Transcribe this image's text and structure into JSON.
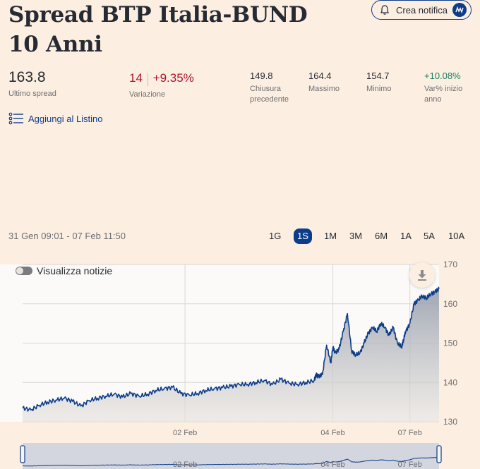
{
  "header": {
    "title": "Spread BTP Italia-BUND 10 Anni",
    "notify_label": "Crea notifica",
    "notify_badge": "••"
  },
  "stats": {
    "last_spread": {
      "value": "163.8",
      "label": "Ultimo spread"
    },
    "change": {
      "abs": "14",
      "pct": "+9.35%",
      "label": "Variazione"
    },
    "prev_close": {
      "value": "149.8",
      "label_1": "Chiusura",
      "label_2": "precedente"
    },
    "max": {
      "value": "164.4",
      "label": "Massimo"
    },
    "min": {
      "value": "154.7",
      "label": "Minimo"
    },
    "ytd": {
      "value": "+10.08%",
      "label_1": "Var% inizio",
      "label_2": "anno"
    }
  },
  "watchlist_label": "Aggiungi al Listino",
  "range_text": "31 Gen 09:01 - 07 Feb 11:50",
  "timeframes": [
    "1G",
    "1S",
    "1M",
    "3M",
    "6M",
    "1A",
    "5A",
    "10A"
  ],
  "active_timeframe": "1S",
  "news_toggle_label": "Visualizza notizie",
  "news_toggle_on": false,
  "colors": {
    "line": "#0d3c8a",
    "accent": "#0d3c8a",
    "up": "#1c8062",
    "down": "#b0112b"
  },
  "chart_data": {
    "type": "area",
    "title": "Spread BTP Italia-BUND 10 Anni",
    "xlabel": "",
    "ylabel": "",
    "ylim": [
      130,
      170
    ],
    "yticks": [
      130,
      140,
      150,
      160,
      170
    ],
    "y_axis_side": "right",
    "x_tick_labels": [
      "02 Feb",
      "04 Feb",
      "07 Feb"
    ],
    "x_tick_positions": [
      0.39,
      0.745,
      0.93
    ],
    "navigator_tick_labels": [
      "02 Feb",
      "04 Feb",
      "07 Feb"
    ],
    "series": [
      {
        "name": "Spread",
        "t": [
          0,
          0.02,
          0.04,
          0.06,
          0.08,
          0.1,
          0.12,
          0.14,
          0.16,
          0.18,
          0.2,
          0.22,
          0.24,
          0.26,
          0.28,
          0.3,
          0.32,
          0.34,
          0.36,
          0.38,
          0.4,
          0.42,
          0.44,
          0.46,
          0.48,
          0.5,
          0.52,
          0.54,
          0.56,
          0.58,
          0.6,
          0.62,
          0.64,
          0.66,
          0.68,
          0.7,
          0.705,
          0.71,
          0.72,
          0.73,
          0.74,
          0.745,
          0.75,
          0.76,
          0.77,
          0.78,
          0.79,
          0.8,
          0.81,
          0.82,
          0.83,
          0.84,
          0.85,
          0.86,
          0.87,
          0.88,
          0.89,
          0.9,
          0.91,
          0.915,
          0.92,
          0.93,
          0.94,
          0.95,
          0.96,
          0.97,
          0.98,
          0.99,
          1.0
        ],
        "values": [
          133.5,
          133.0,
          134.2,
          135.0,
          135.5,
          136.0,
          135.2,
          134.0,
          135.4,
          136.0,
          136.5,
          137.0,
          136.3,
          137.2,
          136.5,
          137.0,
          138.0,
          138.4,
          138.8,
          137.2,
          136.8,
          137.2,
          138.0,
          138.4,
          138.7,
          139.0,
          139.5,
          139.5,
          140.0,
          140.5,
          139.5,
          140.8,
          139.8,
          139.5,
          140.0,
          140.5,
          142.0,
          141.5,
          142.0,
          149.5,
          145.0,
          149.0,
          147.5,
          148.5,
          153.0,
          157.5,
          148.0,
          147.0,
          147.5,
          150.0,
          152.5,
          154.0,
          153.0,
          155.0,
          154.0,
          152.0,
          154.0,
          150.0,
          149.0,
          151.0,
          153.0,
          155.0,
          160.0,
          161.0,
          162.0,
          161.5,
          162.5,
          163.0,
          163.8
        ]
      }
    ]
  }
}
